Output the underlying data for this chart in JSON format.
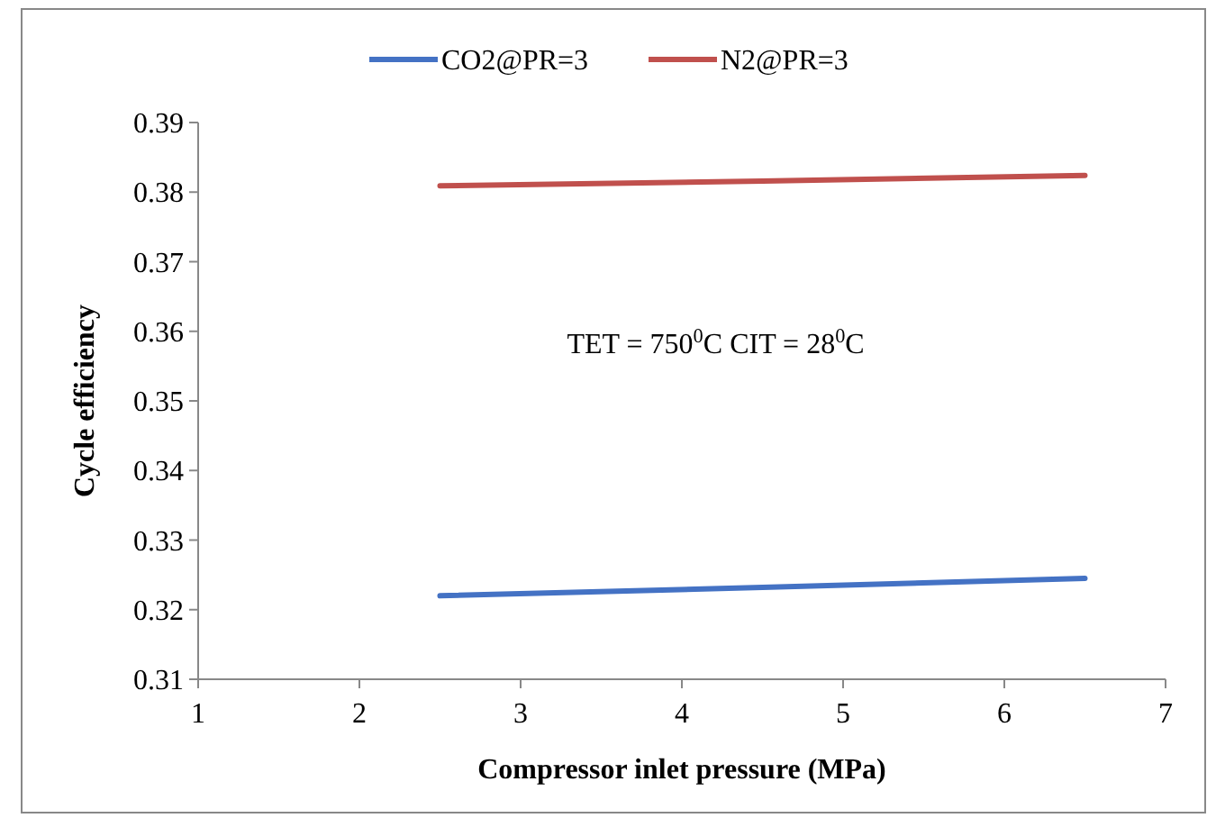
{
  "chart_data": {
    "type": "line",
    "xlabel": "Compressor inlet pressure (MPa)",
    "ylabel": "Cycle efficiency",
    "annotations": [
      "TET = 750$^{0}$C CIT = 28$^{0}$C"
    ],
    "x": [
      2.5,
      4.5,
      6.5
    ],
    "series": [
      {
        "name": "CO2@PR=3",
        "color": "#4472c4",
        "values": [
          0.322,
          0.3232,
          0.3245
        ]
      },
      {
        "name": "N2@PR=3",
        "color": "#c0504d",
        "values": [
          0.3809,
          0.3816,
          0.3824
        ]
      }
    ],
    "xlim": [
      1,
      7
    ],
    "xticks": [
      1,
      2,
      3,
      4,
      5,
      6,
      7
    ],
    "ylim": [
      0.31,
      0.39
    ],
    "yticks": [
      0.31,
      0.32,
      0.33,
      0.34,
      0.35,
      0.36,
      0.37,
      0.38,
      0.39
    ],
    "grid": false,
    "legend": "top",
    "marker": "none",
    "line_style": "solid"
  }
}
